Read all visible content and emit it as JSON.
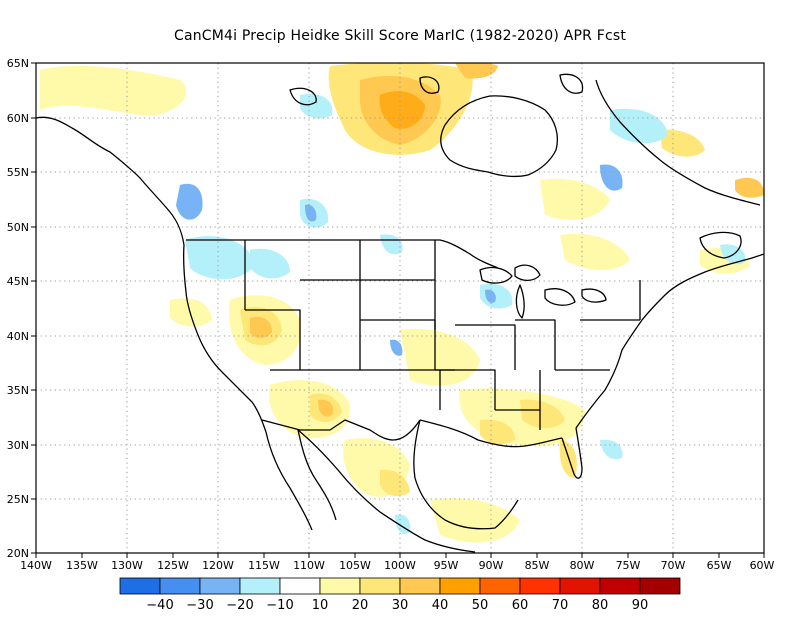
{
  "title": "CanCM4i Precip Heidke Skill Score MarIC (1982-2020) APR Fcst",
  "map": {
    "lat_labels": [
      "65N",
      "60N",
      "55N",
      "50N",
      "45N",
      "40N",
      "35N",
      "30N",
      "25N",
      "20N"
    ],
    "lon_labels": [
      "140W",
      "135W",
      "130W",
      "125W",
      "120W",
      "115W",
      "110W",
      "105W",
      "100W",
      "95W",
      "90W",
      "85W",
      "80W",
      "75W",
      "70W",
      "65W",
      "60W"
    ],
    "lon_range": [
      -140,
      -60
    ],
    "lat_range": [
      20,
      65
    ],
    "grid": "dotted",
    "coastline_color": "#000000"
  },
  "colorbar": {
    "colors": [
      "#1e6ee6",
      "#468ff0",
      "#78b4f5",
      "#b4f0fa",
      "#ffffff",
      "#fffaaa",
      "#ffe678",
      "#ffc850",
      "#ffa000",
      "#ff6400",
      "#ff3200",
      "#e11400",
      "#c00000",
      "#a50000"
    ],
    "labels": [
      "-40",
      "-30",
      "-20",
      "-10",
      "10",
      "20",
      "30",
      "40",
      "50",
      "60",
      "70",
      "80",
      "90"
    ]
  },
  "regions": {
    "canadian_shield_positive": "orange",
    "utah_positive": "orange",
    "new_mexico_positive": "orange",
    "pacific_northwest_negative": "light-blue"
  }
}
